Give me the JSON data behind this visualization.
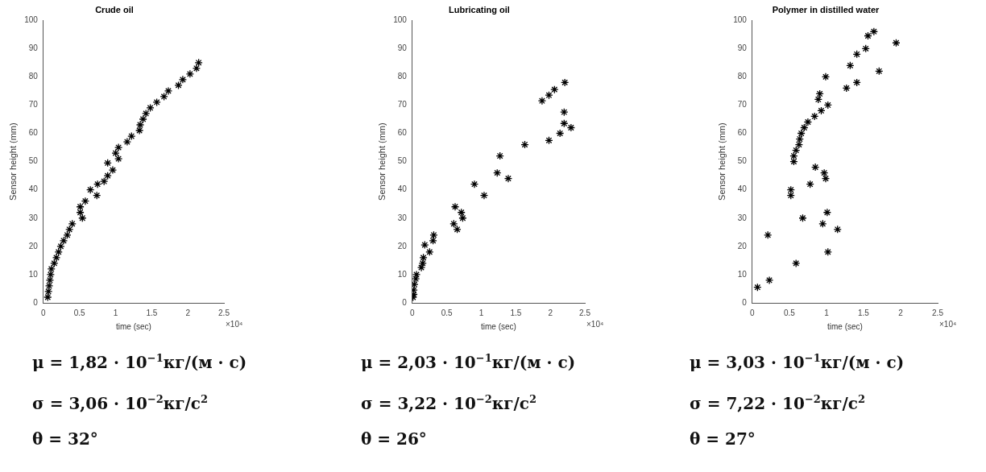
{
  "chart_data": [
    {
      "type": "scatter",
      "title": "Crude oil",
      "xlabel": "time (sec)",
      "ylabel": "Sensor height (mm)",
      "marker": "cross",
      "grid": false,
      "legend": false,
      "xlim": [
        0,
        2.5
      ],
      "xticks": [
        0,
        0.5,
        1,
        1.5,
        2,
        2.5
      ],
      "ylim": [
        0,
        100
      ],
      "yticks": [
        0,
        10,
        20,
        30,
        40,
        50,
        60,
        70,
        80,
        90,
        100
      ],
      "series": [
        {
          "color": "#000000",
          "x": [
            0.06,
            0.07,
            0.08,
            0.09,
            0.1,
            0.11,
            0.15,
            0.18,
            0.21,
            0.24,
            0.28,
            0.33,
            0.36,
            0.4,
            0.54,
            0.51,
            0.51,
            0.58,
            0.74,
            0.65,
            0.75,
            0.84,
            0.89,
            0.89,
            0.96,
            1.0,
            1.04,
            1.04,
            1.16,
            1.22,
            1.33,
            1.34,
            1.38,
            1.42,
            1.48,
            1.57,
            1.67,
            1.73,
            1.87,
            1.93,
            2.03,
            2.12,
            2.15
          ],
          "values": [
            2,
            4,
            6,
            8,
            10,
            12,
            14,
            16,
            18,
            20,
            22,
            24,
            26,
            28,
            30,
            32,
            34,
            36,
            38,
            40,
            42,
            43,
            45,
            49.5,
            47,
            53,
            51,
            55,
            57,
            59,
            61,
            63,
            65,
            67,
            69,
            71,
            73,
            75,
            77,
            79,
            81,
            83,
            85
          ]
        }
      ],
      "annotations": [
        "×10⁴",
        "μ = 1,82 · 10$^{−1}$кг/(м · с)",
        "σ = 3,06 · 10$^{−2}$кг/с$^{2}$",
        "θ = 32°"
      ]
    },
    {
      "type": "scatter",
      "title": "Lubricating oil",
      "xlabel": "time (sec)",
      "ylabel": "Sensor height (mm)",
      "marker": "cross",
      "grid": false,
      "legend": false,
      "xlim": [
        0,
        2.5
      ],
      "xticks": [
        0,
        0.5,
        1,
        1.5,
        2,
        2.5
      ],
      "ylim": [
        0,
        100
      ],
      "yticks": [
        0,
        10,
        20,
        30,
        40,
        50,
        60,
        70,
        80,
        90,
        100
      ],
      "series": [
        {
          "color": "#000000",
          "x": [
            0.01,
            0.02,
            0.02,
            0.03,
            0.05,
            0.06,
            0.13,
            0.15,
            0.16,
            0.18,
            0.25,
            0.3,
            0.31,
            0.6,
            0.62,
            0.65,
            0.71,
            0.73,
            0.9,
            1.04,
            1.23,
            1.27,
            1.39,
            1.63,
            1.88,
            1.98,
            1.98,
            2.06,
            2.21,
            2.2,
            2.2,
            2.14,
            2.3
          ],
          "values": [
            2,
            3,
            4.5,
            6.5,
            8.5,
            10,
            12.5,
            14,
            16,
            20.5,
            18,
            22,
            24,
            28,
            34,
            26,
            32,
            30,
            42,
            38,
            46,
            52,
            44,
            56,
            71.5,
            73.5,
            57.5,
            75.5,
            78,
            67.5,
            63.5,
            60,
            62
          ]
        }
      ],
      "annotations": [
        "×10⁴",
        "μ = 2,03 · 10$^{−1}$кг/(м · с)",
        "σ = 3,22 · 10$^{−2}$кг/с$^{2}$",
        "θ = 26°"
      ]
    },
    {
      "type": "scatter",
      "title": "Polymer in distilled water",
      "xlabel": "time (sec)",
      "ylabel": "Sensor height (mm)",
      "marker": "cross",
      "grid": false,
      "legend": false,
      "xlim": [
        0,
        2.5
      ],
      "xticks": [
        0,
        0.5,
        1,
        1.5,
        2,
        2.5
      ],
      "ylim": [
        0,
        100
      ],
      "yticks": [
        0,
        10,
        20,
        30,
        40,
        50,
        60,
        70,
        80,
        90,
        100
      ],
      "series": [
        {
          "color": "#000000",
          "x": [
            0.07,
            0.21,
            0.23,
            0.52,
            0.52,
            0.56,
            0.56,
            0.59,
            0.59,
            0.63,
            0.64,
            0.66,
            0.68,
            0.7,
            0.75,
            0.78,
            0.84,
            0.85,
            0.89,
            0.91,
            0.93,
            0.95,
            0.97,
            0.99,
            0.99,
            1.01,
            1.02,
            1.02,
            1.15,
            1.27,
            1.32,
            1.41,
            1.41,
            1.53,
            1.56,
            1.64,
            1.71,
            1.94
          ],
          "values": [
            5.5,
            24,
            8,
            40,
            38,
            50,
            52,
            14,
            54,
            56,
            58,
            60,
            30,
            62,
            64,
            42,
            66,
            48,
            72,
            74,
            68,
            28,
            46,
            44,
            80,
            32,
            18,
            70,
            26,
            76,
            84,
            88,
            78,
            90,
            94.5,
            96,
            82,
            92
          ]
        }
      ],
      "annotations": [
        "×10⁴",
        "μ = 3,03 · 10$^{−1}$кг/(м · с)",
        "σ = 7,22 · 10$^{−2}$кг/с$^{2}$",
        "θ = 27°"
      ]
    }
  ]
}
